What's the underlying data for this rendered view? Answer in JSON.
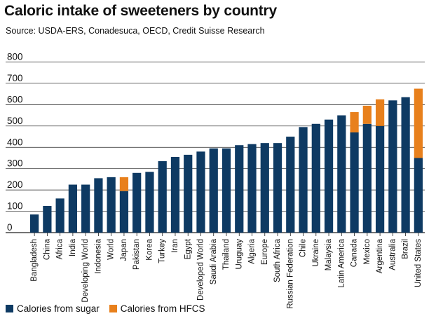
{
  "chart_data": {
    "type": "bar",
    "stacked": true,
    "title": "Caloric intake of sweeteners by country",
    "subtitle": "Source: USDA-ERS, Conadesuca, OECD, Credit Suisse Research",
    "xlabel": "",
    "ylabel": "",
    "ylim": [
      0,
      800
    ],
    "yticks": [
      0,
      100,
      200,
      300,
      400,
      500,
      600,
      700,
      800
    ],
    "grid": true,
    "legend_position": "bottom-left",
    "categories": [
      "Bangladesh",
      "China",
      "Africa",
      "India",
      "Developing World",
      "Indonesia",
      "World",
      "Japan",
      "Pakistan",
      "Korea",
      "Turkey",
      "Iran",
      "Egypt",
      "Developed World",
      "Saudi Arabia",
      "Thailand",
      "Uruguay",
      "Algeria",
      "Europe",
      "South Africa",
      "Russian Federation",
      "Chile",
      "Ukraine",
      "Malaysia",
      "Latin America",
      "Canada",
      "Mexico",
      "Argentina",
      "Australia",
      "Brazil",
      "United States"
    ],
    "series": [
      {
        "name": "Calories from sugar",
        "color": "#0e3a63",
        "values": [
          85,
          125,
          160,
          225,
          225,
          255,
          260,
          195,
          280,
          285,
          335,
          355,
          365,
          380,
          395,
          395,
          410,
          415,
          420,
          420,
          450,
          495,
          510,
          530,
          550,
          470,
          510,
          500,
          620,
          635,
          350
        ]
      },
      {
        "name": "Calories from HFCS",
        "color": "#e8801c",
        "values": [
          0,
          0,
          0,
          0,
          0,
          0,
          0,
          65,
          0,
          0,
          0,
          0,
          0,
          0,
          0,
          0,
          0,
          0,
          0,
          0,
          0,
          0,
          0,
          0,
          0,
          95,
          85,
          125,
          0,
          0,
          325
        ]
      }
    ]
  }
}
